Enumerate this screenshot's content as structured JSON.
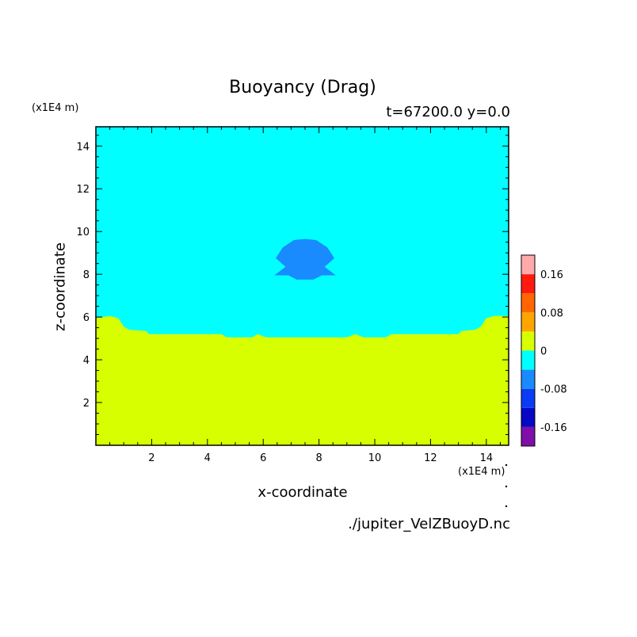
{
  "chart_data": {
    "type": "heatmap",
    "title": "Buoyancy (Drag)",
    "subtitle": "t=67200.0 y=0.0",
    "xlabel": "x-coordinate",
    "ylabel": "z-coordinate",
    "x_units": "(x1E4 m)",
    "y_units": "(x1E4 m)",
    "xlim": [
      0,
      14.8
    ],
    "ylim": [
      0,
      14.9
    ],
    "x_ticks": [
      2,
      4,
      6,
      8,
      10,
      12,
      14
    ],
    "y_ticks": [
      2,
      4,
      6,
      8,
      10,
      12,
      14
    ],
    "colorbar": {
      "ticks": [
        "0.16",
        "0.08",
        "0",
        "-0.08",
        "-0.16"
      ],
      "bands": [
        {
          "from": -0.2,
          "to": -0.16,
          "color": "#7f0fa8"
        },
        {
          "from": -0.16,
          "to": -0.12,
          "color": "#0707c5"
        },
        {
          "from": -0.12,
          "to": -0.08,
          "color": "#0a3cf5"
        },
        {
          "from": -0.08,
          "to": -0.04,
          "color": "#1a8aff"
        },
        {
          "from": -0.04,
          "to": 0.0,
          "color": "#00ffff"
        },
        {
          "from": 0.0,
          "to": 0.04,
          "color": "#d7ff00"
        },
        {
          "from": 0.04,
          "to": 0.08,
          "color": "#ffa500"
        },
        {
          "from": 0.08,
          "to": 0.12,
          "color": "#ff6600"
        },
        {
          "from": 0.12,
          "to": 0.16,
          "color": "#ff1a10"
        },
        {
          "from": 0.16,
          "to": 0.2,
          "color": "#ffaaaa"
        }
      ]
    },
    "regions": [
      {
        "name": "background",
        "level": "-0.04 to 0",
        "color": "#00ffff",
        "polygon": [
          [
            0,
            0
          ],
          [
            14.8,
            0
          ],
          [
            14.8,
            14.9
          ],
          [
            0,
            14.9
          ]
        ]
      },
      {
        "name": "lower layer",
        "level": "0 to 0.04",
        "color": "#d7ff00",
        "polygon": [
          [
            0,
            0
          ],
          [
            0,
            5.95
          ],
          [
            0.5,
            6.05
          ],
          [
            0.8,
            5.95
          ],
          [
            1.0,
            5.55
          ],
          [
            1.2,
            5.4
          ],
          [
            1.8,
            5.35
          ],
          [
            1.9,
            5.2
          ],
          [
            4.5,
            5.2
          ],
          [
            4.7,
            5.05
          ],
          [
            5.6,
            5.05
          ],
          [
            5.8,
            5.2
          ],
          [
            6.1,
            5.05
          ],
          [
            9.0,
            5.05
          ],
          [
            9.3,
            5.2
          ],
          [
            9.6,
            5.05
          ],
          [
            10.4,
            5.05
          ],
          [
            10.6,
            5.2
          ],
          [
            13.0,
            5.2
          ],
          [
            13.1,
            5.35
          ],
          [
            13.6,
            5.4
          ],
          [
            13.8,
            5.55
          ],
          [
            14.0,
            5.95
          ],
          [
            14.3,
            6.05
          ],
          [
            14.8,
            6.05
          ],
          [
            14.8,
            0
          ]
        ]
      },
      {
        "name": "central cell",
        "level": "-0.08 to -0.04",
        "color": "#1a8aff",
        "polygon": [
          [
            6.4,
            7.95
          ],
          [
            6.9,
            7.95
          ],
          [
            7.2,
            7.75
          ],
          [
            7.8,
            7.75
          ],
          [
            8.1,
            7.95
          ],
          [
            8.6,
            7.95
          ],
          [
            8.2,
            8.35
          ],
          [
            8.55,
            8.75
          ],
          [
            8.3,
            9.25
          ],
          [
            7.9,
            9.6
          ],
          [
            7.5,
            9.65
          ],
          [
            7.1,
            9.6
          ],
          [
            6.7,
            9.25
          ],
          [
            6.45,
            8.75
          ],
          [
            6.8,
            8.35
          ]
        ]
      }
    ]
  },
  "source_file": "./jupiter_VelZBuoyD.nc"
}
